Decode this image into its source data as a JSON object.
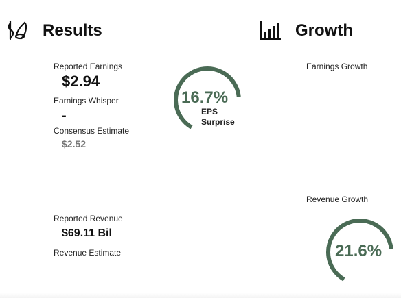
{
  "colors": {
    "accent": "#4a6b55",
    "text": "#111111",
    "muted": "#777777"
  },
  "results": {
    "icon": "money-bag-icon",
    "title": "Results",
    "earnings": {
      "reported_label": "Reported Earnings",
      "reported_value": "$2.94",
      "whisper_label": "Earnings Whisper",
      "whisper_value": "-",
      "consensus_label": "Consensus Estimate",
      "consensus_value": "$2.52"
    },
    "eps_surprise": {
      "value": "16.7%",
      "label_line1": "EPS",
      "label_line2": "Surprise",
      "ring_fraction": 0.65
    },
    "revenue": {
      "reported_label": "Reported Revenue",
      "reported_value": "$69.11 Bil",
      "estimate_label": "Revenue Estimate"
    }
  },
  "growth": {
    "icon": "bar-chart-icon",
    "title": "Growth",
    "earnings_growth_label": "Earnings Growth",
    "revenue_growth_label": "Revenue Growth",
    "revenue_growth": {
      "value": "21.6%",
      "ring_fraction": 0.65
    }
  }
}
